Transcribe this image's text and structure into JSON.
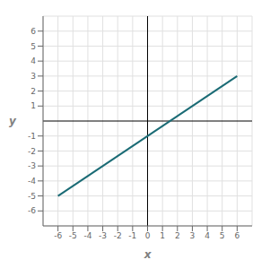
{
  "chart_data": {
    "type": "line",
    "x": [
      -6.0,
      6.0
    ],
    "values": [
      -5.0002,
      3.0002
    ],
    "color": "#1a6b75",
    "xlabel": "x",
    "ylabel": "y",
    "xlim": [
      -7,
      7
    ],
    "ylim": [
      -7,
      7
    ],
    "xticks": [
      -6,
      -5,
      -4,
      -3,
      -2,
      -1,
      0,
      1,
      2,
      3,
      4,
      5,
      6
    ],
    "yticks": [
      -6,
      -5,
      -4,
      -3,
      -2,
      -1,
      1,
      2,
      3,
      4,
      5,
      6
    ],
    "grid": true
  }
}
